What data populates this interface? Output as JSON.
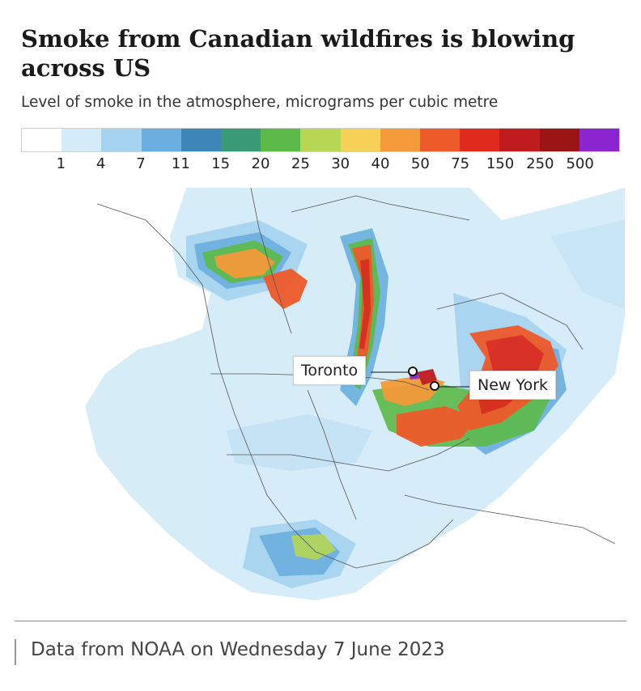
{
  "title": "Smoke from Canadian wildfires is blowing across US",
  "subtitle": "Level of smoke in the atmosphere, micrograms per cubic metre",
  "legend": {
    "swatches": [
      "#ffffff",
      "#d4ecf8",
      "#a6d3f0",
      "#6aaedf",
      "#3d87b8",
      "#3a9a78",
      "#5cba48",
      "#b6d654",
      "#f7d157",
      "#f49a3a",
      "#ee5a2a",
      "#de2b1e",
      "#c01b1f",
      "#9a1414",
      "#8a25d0"
    ],
    "ticks": [
      "1",
      "4",
      "7",
      "11",
      "15",
      "20",
      "25",
      "30",
      "40",
      "50",
      "75",
      "150",
      "250",
      "500"
    ]
  },
  "places": {
    "toronto": "Toronto",
    "new_york": "New York"
  },
  "source": "Data from NOAA on Wednesday 7 June 2023"
}
